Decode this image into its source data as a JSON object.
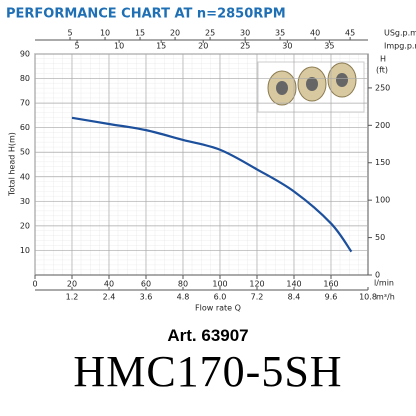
{
  "chart_data": {
    "type": "line",
    "title": "PERFORMANCE CHART AT n=2850RPM",
    "x_label": "Flow rate Q",
    "x_unit": "l/min",
    "y_label": "Total head H(m)",
    "xlim": [
      0,
      180
    ],
    "xticks": [
      0,
      20,
      40,
      60,
      80,
      100,
      120,
      140,
      160
    ],
    "ylim": [
      0,
      90
    ],
    "yticks": [
      10,
      20,
      30,
      40,
      50,
      60,
      70,
      80,
      90
    ],
    "grid": true,
    "series": [
      {
        "color": "#1c4f9c",
        "x": [
          20,
          40,
          60,
          80,
          100,
          120,
          140,
          160,
          171
        ],
        "values": [
          64,
          61.5,
          59,
          55,
          51,
          43,
          34,
          21,
          9.5
        ]
      }
    ],
    "top_axes": [
      {
        "label": "USg.p.m",
        "lim": [
          0,
          47.55
        ],
        "ticks": [
          5,
          10,
          15,
          20,
          25,
          30,
          35,
          40,
          45
        ]
      },
      {
        "label": "Impg.p.m",
        "lim": [
          0,
          39.59
        ],
        "ticks": [
          5,
          10,
          15,
          20,
          25,
          30,
          35
        ]
      }
    ],
    "bottom_axis2": {
      "label": "m³/h",
      "lim": [
        0,
        10.8
      ],
      "ticks": [
        1.2,
        2.4,
        3.6,
        4.8,
        {
          "value": 6,
          "label": "6.0"
        },
        7.2,
        8.4,
        9.6,
        10.8
      ]
    },
    "y2": {
      "label": "H",
      "unit": "(ft)",
      "lim": [
        0,
        295.3
      ],
      "ticks": [
        0,
        50,
        100,
        150,
        200,
        250
      ]
    }
  },
  "caption": {
    "article": "Art. 63907",
    "model": "HMC170-5SH"
  }
}
